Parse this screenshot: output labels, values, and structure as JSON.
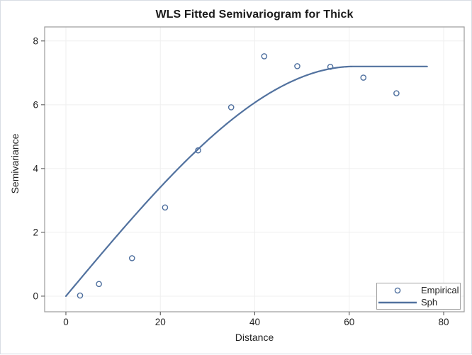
{
  "chart_data": {
    "type": "scatter+line",
    "title": "WLS Fitted Semivariogram for Thick",
    "xlabel": "Distance",
    "ylabel": "Semivariance",
    "xticks": [
      0,
      20,
      40,
      60,
      80
    ],
    "yticks": [
      0,
      2,
      4,
      6,
      8
    ],
    "xlim": [
      -4.5,
      84.35
    ],
    "ylim": [
      -0.49,
      8.44
    ],
    "grid": true,
    "series": [
      {
        "name": "Empirical",
        "type": "scatter",
        "marker": "open-circle",
        "color": "#4e6f9e",
        "x": [
          3,
          7,
          14,
          21,
          28,
          35,
          42,
          49,
          56,
          63,
          70
        ],
        "y": [
          0.02,
          0.38,
          1.19,
          2.78,
          4.57,
          5.92,
          7.52,
          7.21,
          7.19,
          6.85,
          6.36
        ]
      },
      {
        "name": "Sph",
        "type": "line",
        "color": "#52729f",
        "model": "spherical",
        "sill": 7.2,
        "range": 61,
        "nugget": 0,
        "x_start": 0,
        "x_end": 76.5
      }
    ],
    "legend": {
      "position": "bottom-right",
      "entries": [
        {
          "label": "Empirical",
          "swatch": "marker"
        },
        {
          "label": "Sph",
          "swatch": "line"
        }
      ]
    }
  },
  "style": {
    "line_color": "#52729f",
    "marker_color": "#4e6f9e",
    "grid_color": "#efefef",
    "frame_color": "#9b9b9b",
    "tick_color": "#4a4a4a",
    "text_color": "#222222",
    "title_color": "#1a1a1a",
    "figure_border_color": "#d8dde4"
  }
}
